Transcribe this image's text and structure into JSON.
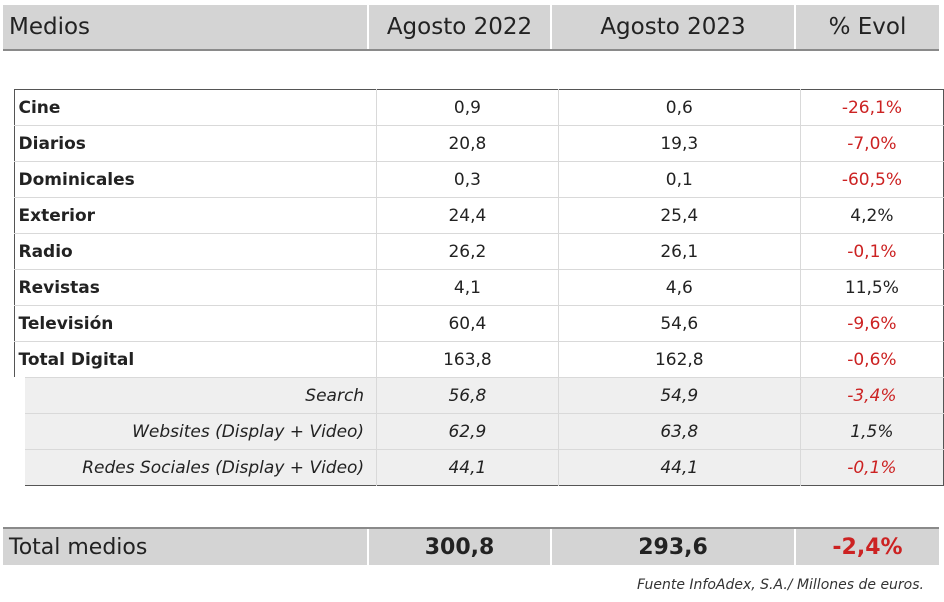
{
  "header": {
    "col1": "Medios",
    "col2": "Agosto 2022",
    "col3": "Agosto 2023",
    "col4": "% Evol"
  },
  "rows": [
    {
      "label": "Cine",
      "v2022": "0,9",
      "v2023": "0,6",
      "evol": "-26,1%",
      "negative": true
    },
    {
      "label": "Diarios",
      "v2022": "20,8",
      "v2023": "19,3",
      "evol": "-7,0%",
      "negative": true
    },
    {
      "label": "Dominicales",
      "v2022": "0,3",
      "v2023": "0,1",
      "evol": "-60,5%",
      "negative": true
    },
    {
      "label": "Exterior",
      "v2022": "24,4",
      "v2023": "25,4",
      "evol": "4,2%",
      "negative": false
    },
    {
      "label": "Radio",
      "v2022": "26,2",
      "v2023": "26,1",
      "evol": "-0,1%",
      "negative": true
    },
    {
      "label": "Revistas",
      "v2022": "4,1",
      "v2023": "4,6",
      "evol": "11,5%",
      "negative": false
    },
    {
      "label": "Televisión",
      "v2022": "60,4",
      "v2023": "54,6",
      "evol": "-9,6%",
      "negative": true
    },
    {
      "label": "Total Digital",
      "v2022": "163,8",
      "v2023": "162,8",
      "evol": "-0,6%",
      "negative": true
    }
  ],
  "subrows": [
    {
      "label": "Search",
      "v2022": "56,8",
      "v2023": "54,9",
      "evol": "-3,4%",
      "negative": true
    },
    {
      "label": "Websites (Display + Video)",
      "v2022": "62,9",
      "v2023": "63,8",
      "evol": "1,5%",
      "negative": false
    },
    {
      "label": "Redes Sociales (Display + Video)",
      "v2022": "44,1",
      "v2023": "44,1",
      "evol": "-0,1%",
      "negative": true
    }
  ],
  "total": {
    "label": "Total medios",
    "v2022": "300,8",
    "v2023": "293,6",
    "evol": "-2,4%",
    "negative": true
  },
  "source": "Fuente InfoAdex, S.A./ Millones de euros.",
  "colors": {
    "header_bg": "#d4d4d4",
    "subrow_bg": "#efefef",
    "negative": "#cc2222"
  }
}
